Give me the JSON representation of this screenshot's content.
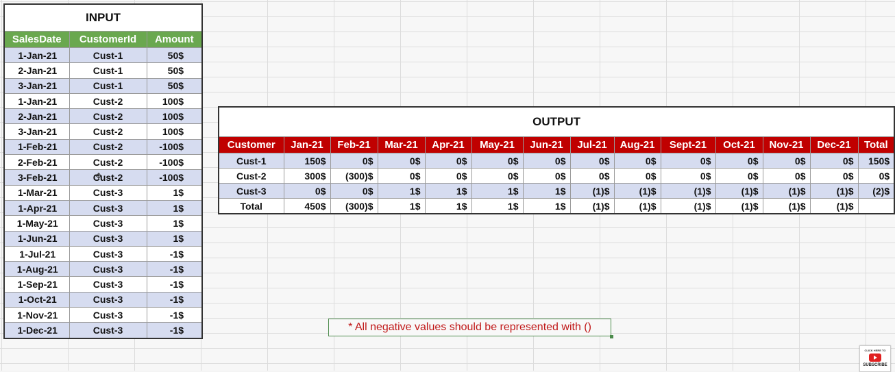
{
  "input": {
    "title": "INPUT",
    "headers": [
      "SalesDate",
      "CustomerId",
      "Amount"
    ],
    "rows": [
      [
        "1-Jan-21",
        "Cust-1",
        "50$"
      ],
      [
        "2-Jan-21",
        "Cust-1",
        "50$"
      ],
      [
        "3-Jan-21",
        "Cust-1",
        "50$"
      ],
      [
        "1-Jan-21",
        "Cust-2",
        "100$"
      ],
      [
        "2-Jan-21",
        "Cust-2",
        "100$"
      ],
      [
        "3-Jan-21",
        "Cust-2",
        "100$"
      ],
      [
        "1-Feb-21",
        "Cust-2",
        "-100$"
      ],
      [
        "2-Feb-21",
        "Cust-2",
        "-100$"
      ],
      [
        "3-Feb-21",
        "Cust-2",
        "-100$"
      ],
      [
        "1-Mar-21",
        "Cust-3",
        "1$"
      ],
      [
        "1-Apr-21",
        "Cust-3",
        "1$"
      ],
      [
        "1-May-21",
        "Cust-3",
        "1$"
      ],
      [
        "1-Jun-21",
        "Cust-3",
        "1$"
      ],
      [
        "1-Jul-21",
        "Cust-3",
        "-1$"
      ],
      [
        "1-Aug-21",
        "Cust-3",
        "-1$"
      ],
      [
        "1-Sep-21",
        "Cust-3",
        "-1$"
      ],
      [
        "1-Oct-21",
        "Cust-3",
        "-1$"
      ],
      [
        "1-Nov-21",
        "Cust-3",
        "-1$"
      ],
      [
        "1-Dec-21",
        "Cust-3",
        "-1$"
      ]
    ]
  },
  "output": {
    "title": "OUTPUT",
    "headers": [
      "Customer",
      "Jan-21",
      "Feb-21",
      "Mar-21",
      "Apr-21",
      "May-21",
      "Jun-21",
      "Jul-21",
      "Aug-21",
      "Sept-21",
      "Oct-21",
      "Nov-21",
      "Dec-21",
      "Total"
    ],
    "rows": [
      [
        "Cust-1",
        "150$",
        "0$",
        "0$",
        "0$",
        "0$",
        "0$",
        "0$",
        "0$",
        "0$",
        "0$",
        "0$",
        "0$",
        "150$"
      ],
      [
        "Cust-2",
        "300$",
        "(300)$",
        "0$",
        "0$",
        "0$",
        "0$",
        "0$",
        "0$",
        "0$",
        "0$",
        "0$",
        "0$",
        "0$"
      ],
      [
        "Cust-3",
        "0$",
        "0$",
        "1$",
        "1$",
        "1$",
        "1$",
        "(1)$",
        "(1)$",
        "(1)$",
        "(1)$",
        "(1)$",
        "(1)$",
        "(2)$"
      ],
      [
        "Total",
        "450$",
        "(300)$",
        "1$",
        "1$",
        "1$",
        "1$",
        "(1)$",
        "(1)$",
        "(1)$",
        "(1)$",
        "(1)$",
        "(1)$",
        ""
      ]
    ]
  },
  "note": "* All negative values should be represented with ()",
  "badge": {
    "small_text": "CLICK HERE TO",
    "label": "SUBSCRIBE"
  },
  "colors": {
    "input_header": "#6aa84f",
    "output_header": "#c00000",
    "row_shade": "#d6dcf0",
    "note_text": "#c01818",
    "note_border": "#4c8b4c"
  }
}
